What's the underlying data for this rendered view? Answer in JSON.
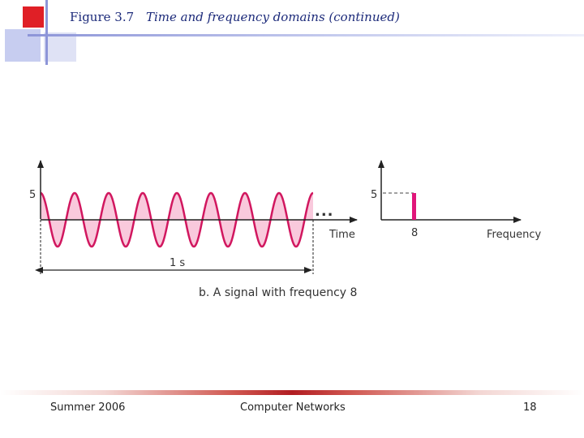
{
  "slide": {
    "figure_label": "Figure 3.7",
    "figure_title": "Time and frequency domains (continued)"
  },
  "time_domain": {
    "amplitude_tick": "5",
    "x_axis_label": "Time",
    "duration_label": "1 s",
    "ellipsis": "...",
    "cycles": 8,
    "amplitude": 5,
    "fill_color": "#f9c9dc",
    "stroke_color": "#d1175f"
  },
  "frequency_domain": {
    "amplitude_tick": "5",
    "x_axis_label": "Frequency",
    "frequency_tick": "8",
    "bar_color": "#e0167a"
  },
  "caption": "b. A signal with frequency 8",
  "footer": {
    "left": "Summer 2006",
    "center": "Computer Networks",
    "page_number": "18"
  }
}
